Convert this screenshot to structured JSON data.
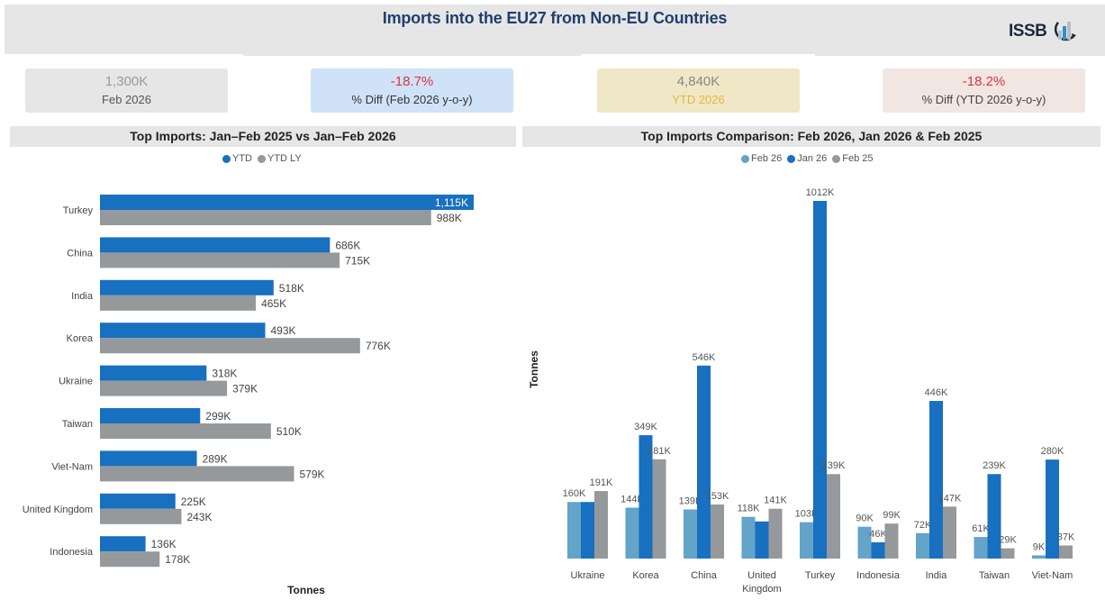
{
  "header": {
    "title": "Imports into the EU27 from Non-EU Countries",
    "logo_text": "ISSB"
  },
  "kpis": [
    {
      "value": "1,300K",
      "label": "Feb 2026"
    },
    {
      "value": "-18.7%",
      "label": "% Diff (Feb 2026 y-o-y)"
    },
    {
      "value": "4,840K",
      "label": "YTD 2026"
    },
    {
      "value": "-18.2%",
      "label": "% Diff (YTD 2026 y-o-y)"
    }
  ],
  "colors": {
    "ytd": "#1870c0",
    "ytd_ly": "#95999c",
    "feb26": "#63a4c8",
    "jan26": "#1870c0",
    "feb25": "#95999c"
  },
  "chart_data": [
    {
      "type": "bar",
      "orientation": "horizontal",
      "title": "Top Imports: Jan–Feb 2025 vs Jan–Feb 2026",
      "xlabel": "Tonnes",
      "ylabel": "",
      "legend_position": "top-center",
      "grid": false,
      "categories": [
        "Turkey",
        "China",
        "India",
        "Korea",
        "Ukraine",
        "Taiwan",
        "Viet-Nam",
        "United Kingdom",
        "Indonesia"
      ],
      "series": [
        {
          "name": "YTD",
          "values": [
            1115,
            686,
            518,
            493,
            318,
            299,
            289,
            225,
            136
          ],
          "labels": [
            "1,115K",
            "686K",
            "518K",
            "493K",
            "318K",
            "299K",
            "289K",
            "225K",
            "136K"
          ]
        },
        {
          "name": "YTD LY",
          "values": [
            988,
            715,
            465,
            776,
            379,
            510,
            579,
            243,
            178
          ],
          "labels": [
            "988K",
            "715K",
            "465K",
            "776K",
            "379K",
            "510K",
            "579K",
            "243K",
            "178K"
          ]
        }
      ],
      "units": "thousand tonnes",
      "xlim": [
        0,
        1115
      ]
    },
    {
      "type": "bar",
      "orientation": "vertical",
      "title": "Top Imports Comparison: Feb 2026, Jan 2026 & Feb 2025",
      "xlabel": "",
      "ylabel": "Tonnes",
      "legend_position": "top-center",
      "grid": false,
      "categories": [
        "Ukraine",
        "Korea",
        "China",
        "United Kingdom",
        "Turkey",
        "Indonesia",
        "India",
        "Taiwan",
        "Viet-Nam"
      ],
      "series": [
        {
          "name": "Feb 26",
          "values": [
            160,
            144,
            139,
            118,
            103,
            90,
            72,
            61,
            9
          ],
          "labels": [
            "160K",
            "144K",
            "139K",
            "118K",
            "103K",
            "90K",
            "72K",
            "61K",
            "9K"
          ]
        },
        {
          "name": "Jan 26",
          "values": [
            160,
            349,
            546,
            105,
            1012,
            46,
            446,
            239,
            280
          ],
          "labels": [
            "",
            "349K",
            "546K",
            "",
            "1012K",
            "46K",
            "446K",
            "239K",
            "280K"
          ]
        },
        {
          "name": "Feb 25",
          "values": [
            191,
            281,
            153,
            141,
            239,
            99,
            147,
            29,
            37
          ],
          "labels": [
            "191K",
            "281K",
            "153K",
            "141K",
            "239K",
            "99K",
            "147K",
            "29K",
            "37K"
          ]
        }
      ],
      "units": "thousand tonnes",
      "ylim": [
        0,
        1012
      ]
    }
  ]
}
